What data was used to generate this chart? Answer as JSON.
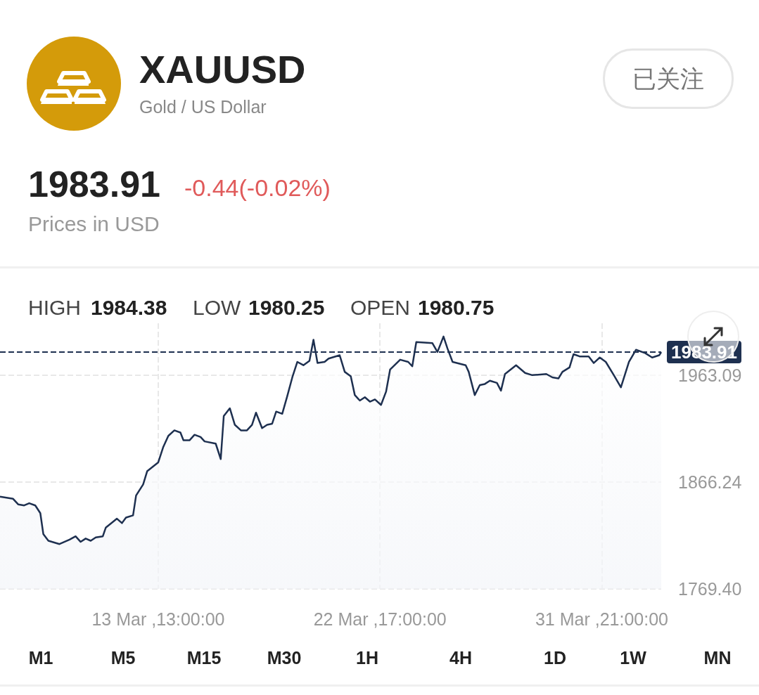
{
  "chart_data": {
    "type": "area",
    "title": "XAUUSD",
    "subtitle": "Gold / US Dollar",
    "annotations": [
      "1983.91",
      "-0.44(-0.02%)",
      "Prices in USD",
      "HIGH",
      "1984.38",
      "LOW",
      "1980.25",
      "OPEN",
      "1980.75",
      "已关注",
      "M1",
      "M5",
      "M15",
      "M30",
      "1H",
      "4H",
      "1D",
      "1W",
      "MN"
    ],
    "x": [
      "--03-07T00:00",
      "--03-07T13:00",
      "--03-07T18:00",
      "--03-08T00:00",
      "--03-08T05:00",
      "--03-08T11:00",
      "--03-08T16:00",
      "--03-08T19:00",
      "--03-09T00:00",
      "--03-09T11:00",
      "--03-09T21:00",
      "--03-10T03:00",
      "--03-10T08:00",
      "--03-10T13:00",
      "--03-10T18:00",
      "--03-10T23:00",
      "--03-11T06:00",
      "--03-11T09:00",
      "--03-11T20:00",
      "--03-12T01:00",
      "--03-12T05:00",
      "--03-12T12:00",
      "--03-12T15:00",
      "--03-12T22:00",
      "--03-13T02:00",
      "--03-13T13:00",
      "--03-13T18:00",
      "--03-13T23:00",
      "--03-14T05:00",
      "--03-14T11:00",
      "--03-14T14:00",
      "--03-14T20:00",
      "--03-15T01:00",
      "--03-15T07:00",
      "--03-15T11:00",
      "--03-15T22:00",
      "--03-16T03:00",
      "--03-16T06:00",
      "--03-16T12:00",
      "--03-16T17:00",
      "--03-16T23:00",
      "--03-17T05:00",
      "--03-17T10:00",
      "--03-17T14:00",
      "--03-17T20:00",
      "--03-18T01:00",
      "--03-18T06:00",
      "--03-18T10:00",
      "--03-18T16:00",
      "--03-18T21:00",
      "--03-19T02:00",
      "--03-19T07:00",
      "--03-19T13:00",
      "--03-19T19:00",
      "--03-19T23:00",
      "--03-20T03:00",
      "--03-20T10:00",
      "--03-20T14:00",
      "--03-21T01:00",
      "--03-21T06:00",
      "--03-21T12:00",
      "--03-21T16:00",
      "--03-21T21:00",
      "--03-22T02:00",
      "--03-22T07:00",
      "--03-22T12:00",
      "--03-22T18:00",
      "--03-22T23:00",
      "--03-23T03:00",
      "--03-23T13:00",
      "--03-23T21:00",
      "--03-24T01:00",
      "--03-24T05:00",
      "--03-24T21:00",
      "--03-25T02:00",
      "--03-25T08:00",
      "--03-25T12:00",
      "--03-25T17:00",
      "--03-26T06:00",
      "--03-26T09:00",
      "--03-26T15:00",
      "--03-26T20:00",
      "--03-27T01:00",
      "--03-27T06:00",
      "--03-27T13:00",
      "--03-27T17:00",
      "--03-27T21:00",
      "--03-28T08:00",
      "--03-28T17:00",
      "--03-29T00:00",
      "--03-29T14:00",
      "--03-29T20:00",
      "--03-30T02:00",
      "--03-30T06:00",
      "--03-30T13:00",
      "--03-30T17:00",
      "--03-30T23:00",
      "--03-31T08:00",
      "--03-31T13:00",
      "--03-31T19:00",
      "--04-01T01:00",
      "--04-01T09:00",
      "--04-01T16:00",
      "--04-02T00:00",
      "--04-02T07:00",
      "--04-02T16:00",
      "--04-02T23:00",
      "--04-03T06:00",
      "--04-03T08:00"
    ],
    "values": [
      1853,
      1851,
      1846,
      1845,
      1847,
      1845,
      1838,
      1819,
      1813,
      1810,
      1814,
      1817,
      1812,
      1815,
      1813,
      1816,
      1817,
      1825,
      1833,
      1829,
      1834,
      1836,
      1854,
      1864,
      1876,
      1884,
      1898,
      1908,
      1913,
      1911,
      1904,
      1904,
      1909,
      1907,
      1903,
      1901,
      1887,
      1926,
      1933,
      1918,
      1913,
      1913,
      1918,
      1929,
      1915,
      1918,
      1919,
      1930,
      1928,
      1944,
      1961,
      1975,
      1972,
      1976,
      1995,
      1974,
      1975,
      1978,
      1981,
      1966,
      1962,
      1945,
      1940,
      1943,
      1939,
      1941,
      1936,
      1948,
      1968,
      1977,
      1975,
      1971,
      1993,
      1992,
      1984,
      1998,
      1987,
      1975,
      1972,
      1966,
      1945,
      1954,
      1955,
      1958,
      1956,
      1949,
      1964,
      1972,
      1965,
      1963,
      1964,
      1961,
      1960,
      1966,
      1970,
      1982,
      1980,
      1980,
      1974,
      1979,
      1975,
      1963,
      1952,
      1975,
      1986,
      1983,
      1979,
      1981,
      1983.91
    ],
    "color": "#1e3050",
    "xlim": [
      "--03-07T00:00",
      "--04-03T08:00"
    ],
    "xticks": [
      {
        "value": "--03-13T13:00",
        "label": "13 Mar ,13:00:00"
      },
      {
        "value": "--03-22T17:00",
        "label": "22 Mar ,17:00:00"
      },
      {
        "value": "--03-31T21:00",
        "label": "31 Mar ,21:00:00"
      }
    ],
    "ylim": [
      1769.4,
      2010
    ],
    "yticks": [
      {
        "value": 1769.4,
        "label": "1769.40"
      },
      {
        "value": 1866.24,
        "label": "1866.24"
      },
      {
        "value": 1963.09,
        "label": "1963.09"
      }
    ],
    "ref_lines": [
      {
        "axis": "y",
        "value": 1983.91,
        "label": "1983.91",
        "color": "#1e3050",
        "line_style": "dashed"
      }
    ],
    "grid": true,
    "marker": "none",
    "line_style": "solid"
  }
}
